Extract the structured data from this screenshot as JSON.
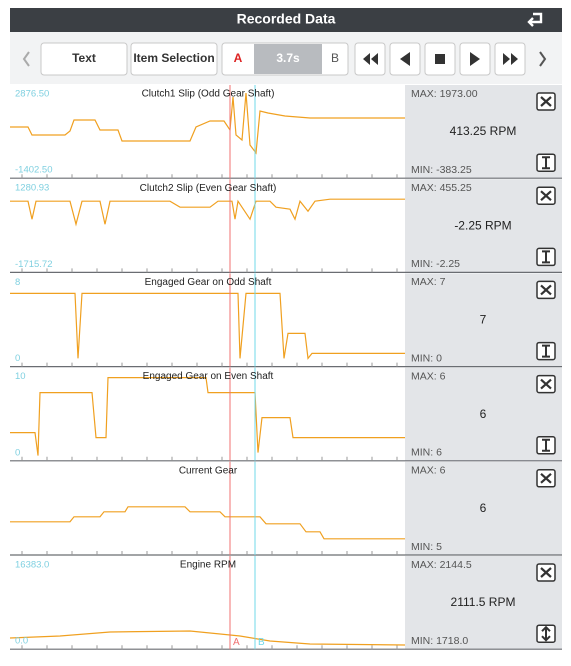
{
  "header": {
    "title": "Recorded Data"
  },
  "toolbar": {
    "text": "Text",
    "item_selection": "Item Selection",
    "cursor_a": "A",
    "time": "3.7s",
    "cursor_b": "B"
  },
  "panels": [
    {
      "title": "Clutch1 Slip (Odd Gear Shaft)",
      "y_max_label": "2876.50",
      "y_min_label": "-1402.50",
      "max": "MAX: 1973.00",
      "value": "413.25 RPM",
      "min": "MIN: -383.25"
    },
    {
      "title": "Clutch2 Slip (Even Gear Shaft)",
      "y_max_label": "1280.93",
      "y_min_label": "-1715.72",
      "max": "MAX: 455.25",
      "value": "-2.25 RPM",
      "min": "MIN: -2.25"
    },
    {
      "title": "Engaged Gear on Odd Shaft",
      "y_max_label": "8",
      "y_min_label": "0",
      "max": "MAX: 7",
      "value": "7",
      "min": "MIN: 0"
    },
    {
      "title": "Engaged Gear on Even Shaft",
      "y_max_label": "10",
      "y_min_label": "0",
      "max": "MAX: 6",
      "value": "6",
      "min": "MIN: 6"
    },
    {
      "title": "Current Gear",
      "max": "MAX: 6",
      "value": "6",
      "min": "MIN: 5"
    },
    {
      "title": "Engine RPM",
      "y_max_label": "16383.0",
      "y_min_label": "0.0",
      "max": "MAX: 2144.5",
      "value": "2111.5 RPM",
      "min": "MIN: 1718.0"
    }
  ],
  "cursor_labels": {
    "a": "A",
    "b": "B"
  }
}
